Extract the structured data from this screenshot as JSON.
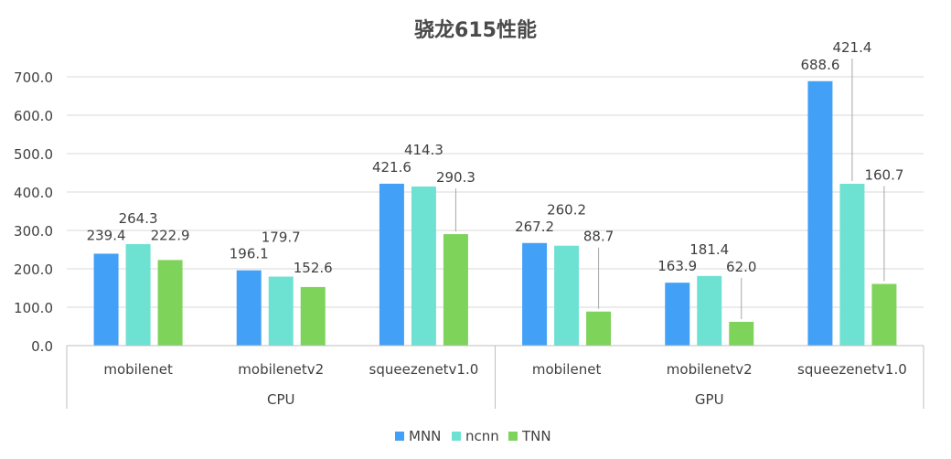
{
  "chart_data": {
    "type": "bar",
    "title": "骁龙615性能",
    "xlabel": "",
    "ylabel": "",
    "ylim": [
      0,
      700
    ],
    "yticks": [
      "0.0",
      "100.0",
      "200.0",
      "300.0",
      "400.0",
      "500.0",
      "600.0",
      "700.0"
    ],
    "grid": true,
    "legend_position": "bottom",
    "groups": [
      "CPU",
      "GPU"
    ],
    "categories": [
      "mobilenet",
      "mobilenetv2",
      "squeezenetv1.0",
      "mobilenet",
      "mobilenetv2",
      "squeezenetv1.0"
    ],
    "series": [
      {
        "name": "MNN",
        "color": "#42A0F7",
        "values": [
          239.4,
          196.1,
          421.6,
          267.2,
          163.9,
          688.6
        ],
        "labels": [
          "239.4",
          "196.1",
          "421.6",
          "267.2",
          "163.9",
          "688.6"
        ]
      },
      {
        "name": "ncnn",
        "color": "#6EE2D2",
        "values": [
          264.3,
          179.7,
          414.3,
          260.2,
          181.4,
          421.4
        ],
        "labels": [
          "264.3",
          "179.7",
          "414.3",
          "260.2",
          "181.4",
          "421.4"
        ]
      },
      {
        "name": "TNN",
        "color": "#7ED35B",
        "values": [
          222.9,
          152.6,
          290.3,
          88.7,
          62.0,
          160.7
        ],
        "labels": [
          "222.9",
          "152.6",
          "290.3",
          "88.7",
          "62.0",
          "160.7"
        ]
      }
    ]
  }
}
